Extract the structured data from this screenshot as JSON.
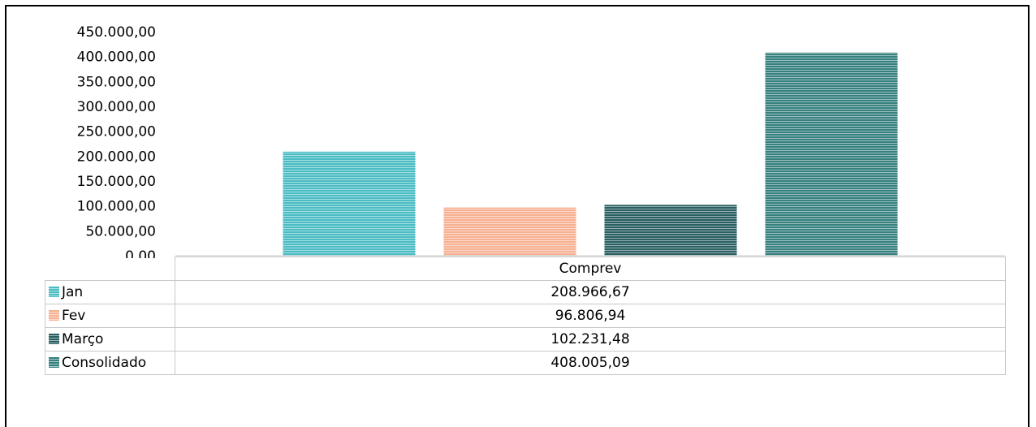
{
  "chart_data": {
    "type": "bar",
    "categories": [
      "Comprev"
    ],
    "series": [
      {
        "name": "Jan",
        "values": [
          208966.67
        ],
        "display": "208.966,67",
        "color": "#4bbcc4"
      },
      {
        "name": "Fev",
        "values": [
          96806.94
        ],
        "display": "96.806,94",
        "color": "#f7b193"
      },
      {
        "name": "Março",
        "values": [
          102231.48
        ],
        "display": "102.231,48",
        "color": "#2a5f62"
      },
      {
        "name": "Consolidado",
        "values": [
          408005.09
        ],
        "display": "408.005,09",
        "color": "#36807f"
      }
    ],
    "yticks": [
      "0,00",
      "50.000,00",
      "100.000,00",
      "150.000,00",
      "200.000,00",
      "250.000,00",
      "300.000,00",
      "350.000,00",
      "400.000,00",
      "450.000,00"
    ],
    "ylim": [
      0,
      450000
    ],
    "legend": "data-table",
    "grid": false,
    "title": "",
    "xlabel": "",
    "ylabel": ""
  }
}
